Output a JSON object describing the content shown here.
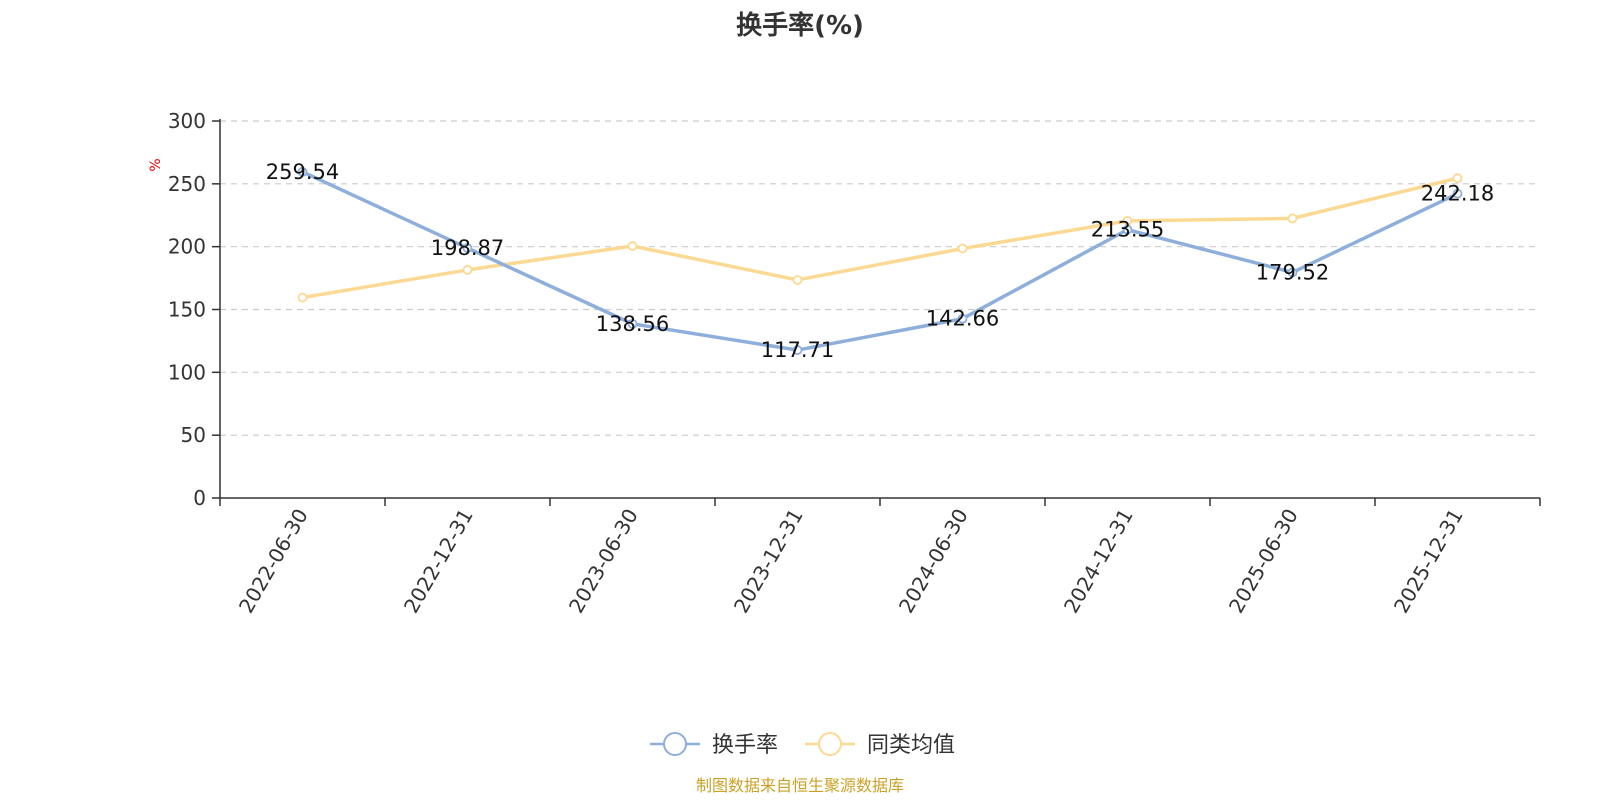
{
  "chart_data": {
    "type": "line",
    "title": "换手率(%)",
    "ylabel": "%",
    "categories": [
      "2022-06-30",
      "2022-12-31",
      "2023-06-30",
      "2023-12-31",
      "2024-06-30",
      "2024-12-31",
      "2025-06-30",
      "2025-12-31"
    ],
    "yticks": [
      "0",
      "50",
      "100",
      "150",
      "200",
      "250",
      "300"
    ],
    "ylim": [
      0,
      300
    ],
    "grid": "horizontal-dashed",
    "legend_position": "bottom-center",
    "series": [
      {
        "name": "换手率",
        "color": "#8eaedb",
        "values": [
          259.54,
          198.87,
          138.56,
          117.71,
          142.66,
          213.55,
          179.52,
          242.18
        ],
        "labels": [
          "259.54",
          "198.87",
          "138.56",
          "117.71",
          "142.66",
          "213.55",
          "179.52",
          "242.18"
        ]
      },
      {
        "name": "同类均值",
        "color": "#fbd993",
        "values": [
          159.5,
          181.5,
          200.5,
          173.5,
          198.5,
          220.5,
          222.5,
          254.5
        ]
      }
    ],
    "source": "制图数据来自恒生聚源数据库"
  }
}
